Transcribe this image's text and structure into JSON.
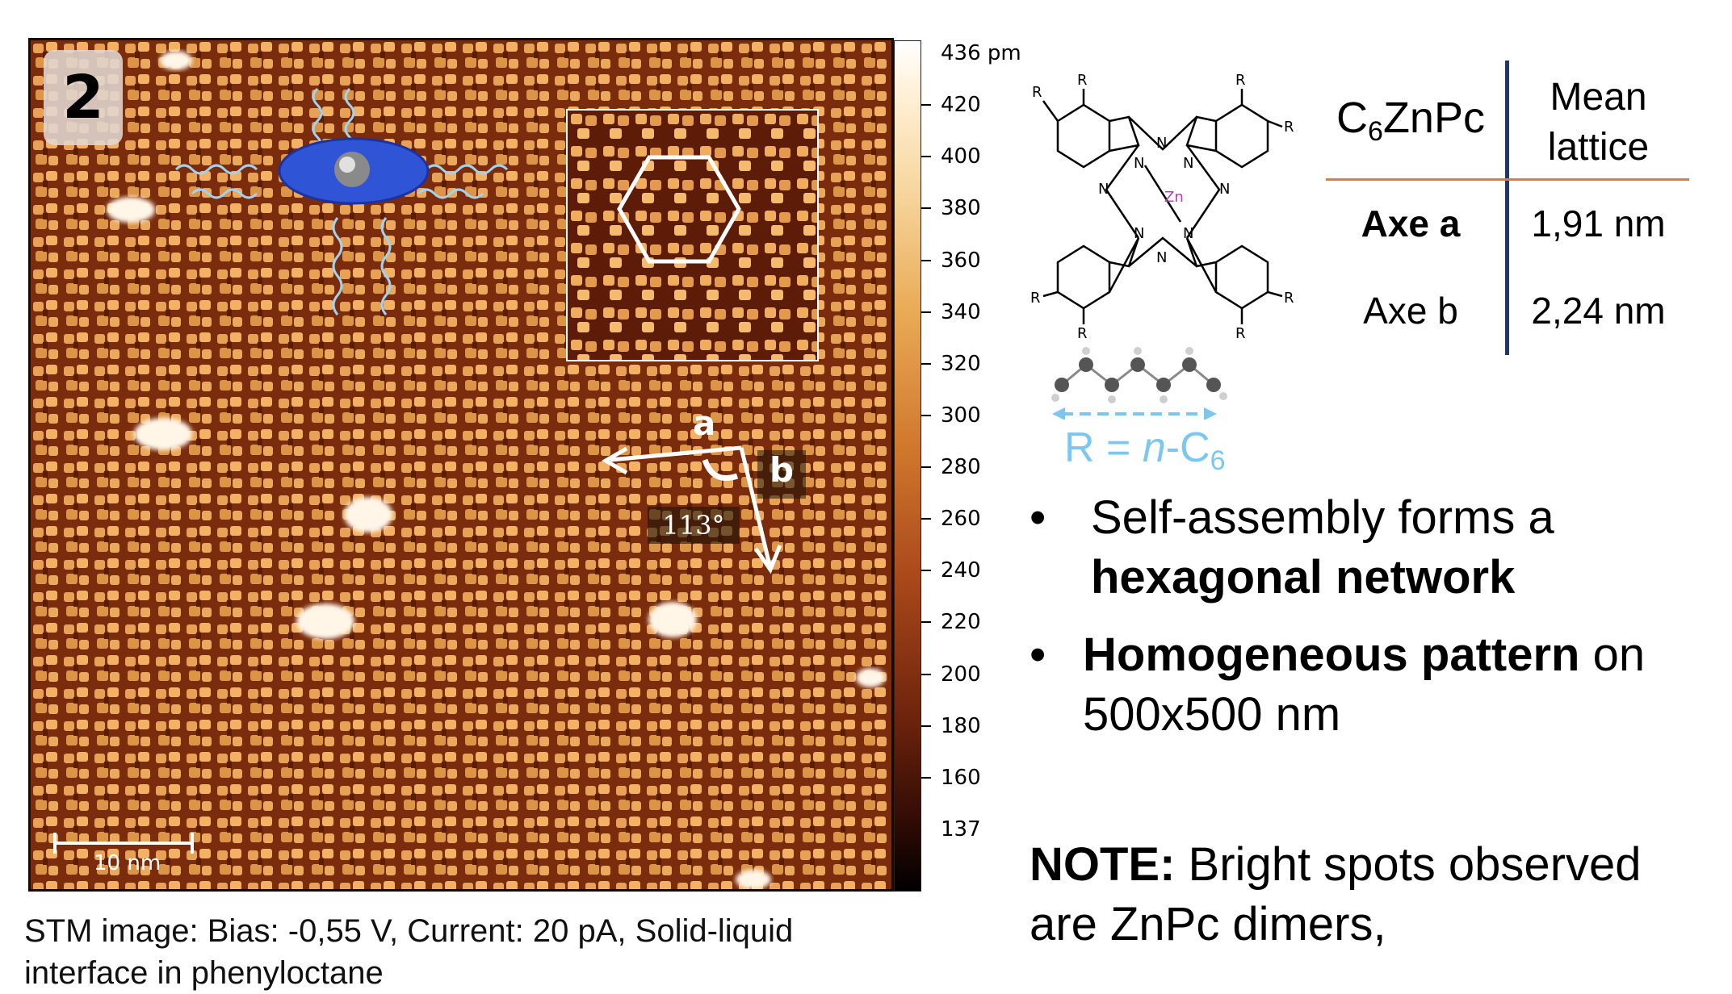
{
  "stm_image": {
    "panel_number": "2",
    "vector_a_label": "a",
    "vector_b_label": "b",
    "angle_label": "113°",
    "scale_bar_label": "10 nm"
  },
  "colorbar": {
    "unit": "pm",
    "max_label": "436 pm",
    "ticks": [
      "420",
      "400",
      "380",
      "360",
      "340",
      "320",
      "300",
      "280",
      "260",
      "240",
      "220",
      "200",
      "180",
      "160"
    ],
    "min_label": "137"
  },
  "caption": {
    "line1": "STM image: Bias: -0,55 V, Current: 20 pA, Solid-liquid",
    "line2": "interface in phenyloctane"
  },
  "molecule": {
    "metal_label": "Zn",
    "substituent_label": "R",
    "nitrogen_label": "N",
    "r_definition_prefix": "R = ",
    "r_definition_italic": "n",
    "r_definition_suffix": "-C",
    "r_definition_subscript": "6"
  },
  "lattice_table": {
    "compound_prefix": "C",
    "compound_subscript": "6",
    "compound_suffix": "ZnPc",
    "header_line1": "Mean",
    "header_line2": "lattice",
    "rows": [
      {
        "label": "Axe a",
        "value": "1,91 nm"
      },
      {
        "label": "Axe b",
        "value": "2,24 nm"
      }
    ]
  },
  "bullets": {
    "bullet_symbol": "•",
    "item1_text": "Self-assembly forms a",
    "item1_bold": "hexagonal network",
    "item2_bold": "Homogeneous pattern",
    "item2_text": " on",
    "item2_line2": "500x500 nm"
  },
  "note": {
    "label": "NOTE:",
    "text_line1": " Bright spots observed",
    "text_line2": "are ZnPc dimers,"
  },
  "colors": {
    "accent_blue": "#1f3864",
    "table_rule": "#e07b39",
    "r_definition": "#7cc7f0",
    "stm_dark": "#7a2c0c",
    "stm_bright": "#f3b163"
  }
}
